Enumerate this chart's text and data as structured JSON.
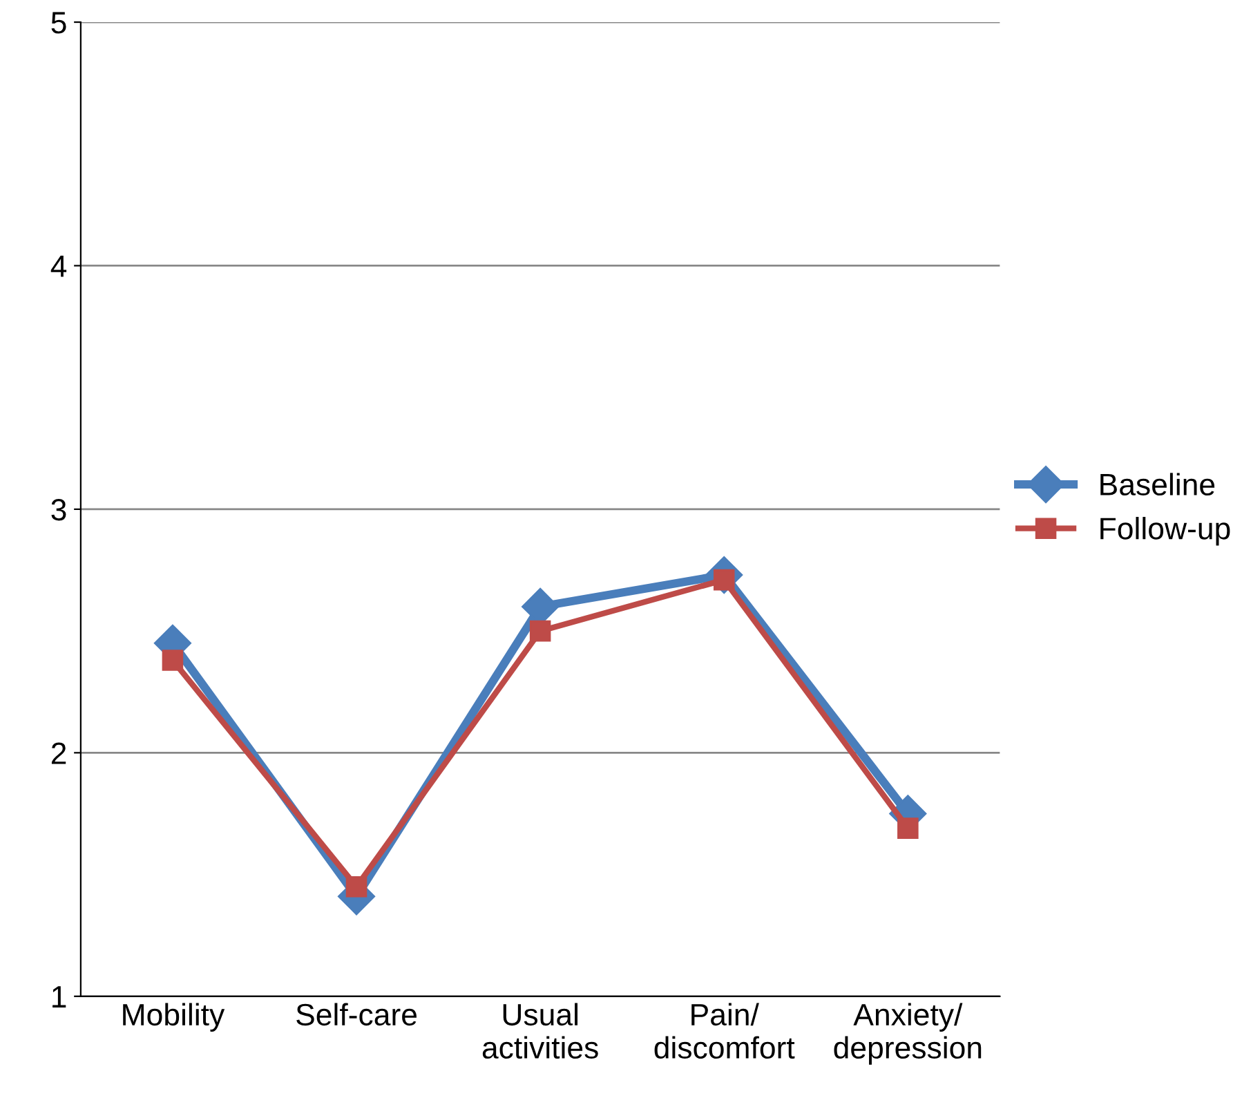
{
  "chart_data": {
    "type": "line",
    "categories": [
      "Mobility",
      "Self-care",
      "Usual\nactivities",
      "Pain/\ndiscomfort",
      "Anxiety/\ndepression"
    ],
    "series": [
      {
        "name": "Baseline",
        "color": "#4a7ebb",
        "marker": "diamond",
        "values": [
          2.45,
          1.41,
          2.6,
          2.73,
          1.75
        ]
      },
      {
        "name": "Follow-up",
        "color": "#be4b48",
        "marker": "square",
        "values": [
          2.38,
          1.45,
          2.5,
          2.71,
          1.69
        ]
      }
    ],
    "ylim": [
      1,
      5
    ],
    "yticks": [
      1,
      2,
      3,
      4,
      5
    ],
    "grid": "y",
    "legend": "right",
    "line_style": "solid"
  }
}
